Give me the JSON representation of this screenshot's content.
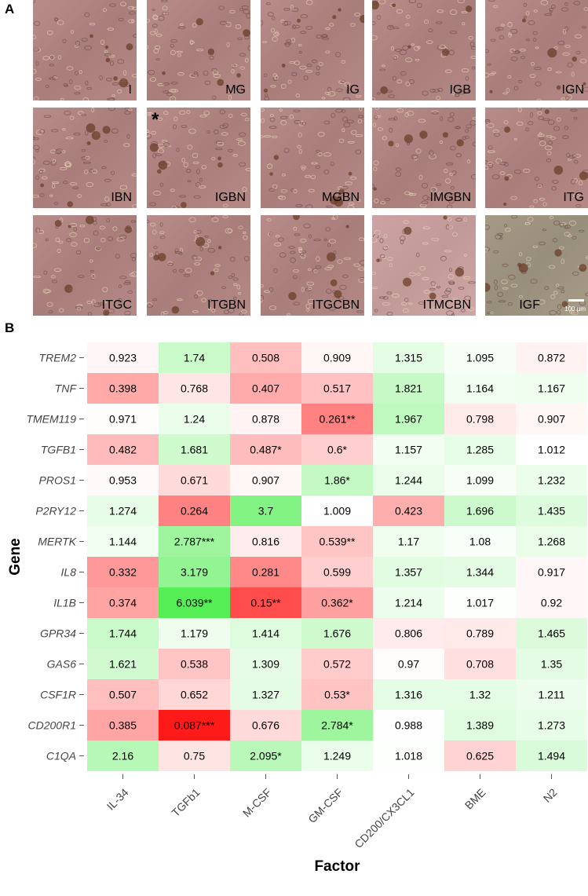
{
  "panel_a": {
    "letter": "A",
    "tiles": [
      "I",
      "MG",
      "IG",
      "IGB",
      "IGN",
      "IBN",
      "IGBN",
      "MGBN",
      "IMGBN",
      "ITG",
      "ITGC",
      "ITGBN",
      "ITGCBN",
      "ITMCBN",
      "IGF"
    ],
    "asterisk": "*",
    "scale_bar_label": "100 µm"
  },
  "panel_b": {
    "letter": "B",
    "color_low": "#ff1a1a",
    "color_mid": "#ffffff",
    "color_high": "#55ee55"
  },
  "chart_data": {
    "type": "heatmap",
    "xlabel": "Factor",
    "ylabel": "Gene",
    "x": [
      "IL-34",
      "TGFb1",
      "M-CSF",
      "GM-CSF",
      "CD200/CX3CL1",
      "BME",
      "N2"
    ],
    "y": [
      "TREM2",
      "TNF",
      "TMEM119",
      "TGFB1",
      "PROS1",
      "P2RY12",
      "MERTK",
      "IL8",
      "IL1B",
      "GPR34",
      "GAS6",
      "CSF1R",
      "CD200R1",
      "C1QA"
    ],
    "values": [
      [
        0.923,
        1.74,
        0.508,
        0.909,
        1.315,
        1.095,
        0.872
      ],
      [
        0.398,
        0.768,
        0.407,
        0.517,
        1.821,
        1.164,
        1.167
      ],
      [
        0.971,
        1.24,
        0.878,
        0.261,
        1.967,
        0.798,
        0.907
      ],
      [
        0.482,
        1.681,
        0.487,
        0.6,
        1.157,
        1.285,
        1.012
      ],
      [
        0.953,
        0.671,
        0.907,
        1.86,
        1.244,
        1.099,
        1.232
      ],
      [
        1.274,
        0.264,
        3.7,
        1.009,
        0.423,
        1.696,
        1.435
      ],
      [
        1.144,
        2.787,
        0.816,
        0.539,
        1.17,
        1.08,
        1.268
      ],
      [
        0.332,
        3.179,
        0.281,
        0.599,
        1.357,
        1.344,
        0.917
      ],
      [
        0.374,
        6.039,
        0.15,
        0.362,
        1.214,
        1.017,
        0.92
      ],
      [
        1.744,
        1.179,
        1.414,
        1.676,
        0.806,
        0.789,
        1.465
      ],
      [
        1.621,
        0.538,
        1.309,
        0.572,
        0.97,
        0.708,
        1.35
      ],
      [
        0.507,
        0.652,
        1.327,
        0.53,
        1.316,
        1.32,
        1.211
      ],
      [
        0.385,
        0.087,
        0.676,
        2.784,
        0.988,
        1.389,
        1.273
      ],
      [
        2.16,
        0.75,
        2.095,
        1.249,
        1.018,
        0.625,
        1.494
      ]
    ],
    "labels": [
      [
        "0.923",
        "1.74",
        "0.508",
        "0.909",
        "1.315",
        "1.095",
        "0.872"
      ],
      [
        "0.398",
        "0.768",
        "0.407",
        "0.517",
        "1.821",
        "1.164",
        "1.167"
      ],
      [
        "0.971",
        "1.24",
        "0.878",
        "0.261**",
        "1.967",
        "0.798",
        "0.907"
      ],
      [
        "0.482",
        "1.681",
        "0.487*",
        "0.6*",
        "1.157",
        "1.285",
        "1.012"
      ],
      [
        "0.953",
        "0.671",
        "0.907",
        "1.86*",
        "1.244",
        "1.099",
        "1.232"
      ],
      [
        "1.274",
        "0.264",
        "3.7",
        "1.009",
        "0.423",
        "1.696",
        "1.435"
      ],
      [
        "1.144",
        "2.787***",
        "0.816",
        "0.539**",
        "1.17",
        "1.08",
        "1.268"
      ],
      [
        "0.332",
        "3.179",
        "0.281",
        "0.599",
        "1.357",
        "1.344",
        "0.917"
      ],
      [
        "0.374",
        "6.039**",
        "0.15**",
        "0.362*",
        "1.214",
        "1.017",
        "0.92"
      ],
      [
        "1.744",
        "1.179",
        "1.414",
        "1.676",
        "0.806",
        "0.789",
        "1.465"
      ],
      [
        "1.621",
        "0.538",
        "1.309",
        "0.572",
        "0.97",
        "0.708",
        "1.35"
      ],
      [
        "0.507",
        "0.652",
        "1.327",
        "0.53*",
        "1.316",
        "1.32",
        "1.211"
      ],
      [
        "0.385",
        "0.087***",
        "0.676",
        "2.784*",
        "0.988",
        "1.389",
        "1.273"
      ],
      [
        "2.16",
        "0.75",
        "2.095*",
        "1.249",
        "1.018",
        "0.625",
        "1.494"
      ]
    ],
    "scale": "log",
    "grid": false,
    "legend": "none"
  }
}
